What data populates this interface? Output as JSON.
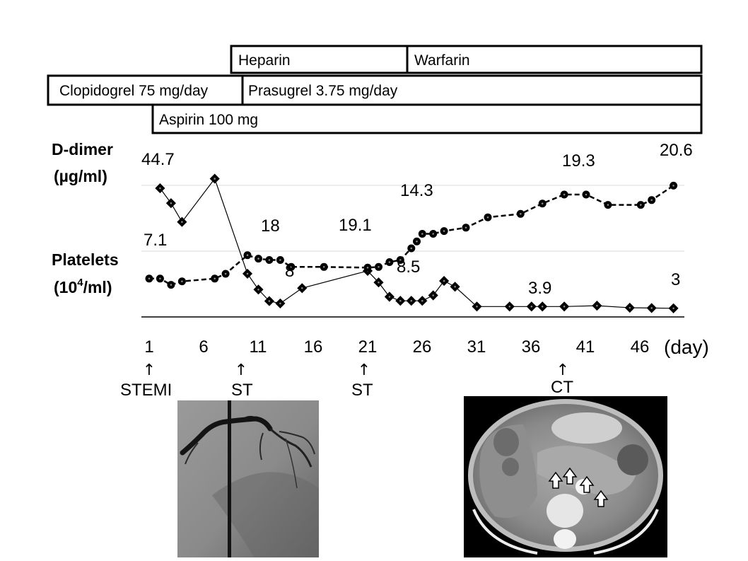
{
  "chart_data": {
    "type": "line",
    "medications": [
      {
        "name": "Heparin",
        "start": 9,
        "end": 25
      },
      {
        "name": "Warfarin",
        "start": 25,
        "end": 48
      },
      {
        "name": "Clopidogrel 75 mg/day",
        "start": 1,
        "end": 10
      },
      {
        "name": "Prasugrel 3.75 mg/day",
        "start": 10,
        "end": 48
      },
      {
        "name": "Aspirin 100 mg",
        "start": 1,
        "end": 48
      }
    ],
    "ylabel_ddimer": [
      "D-dimer",
      "(µg/ml)"
    ],
    "ylabel_platelets": {
      "prefix": "Platelets",
      "open": "(10",
      "sup": "4",
      "close": "/ml)"
    },
    "xlabel": "(day)",
    "xticks": [
      "1",
      "6",
      "11",
      "16",
      "21",
      "26",
      "31",
      "36",
      "41",
      "46"
    ],
    "x_range": [
      1,
      49
    ],
    "series": [
      {
        "name": "D-dimer",
        "style": "solid",
        "marker": "diamond",
        "x": [
          2,
          3,
          4,
          7,
          10,
          11,
          12,
          13,
          15,
          21,
          22,
          23,
          24,
          25,
          26,
          27,
          28,
          29,
          31,
          34,
          36,
          37,
          39,
          42,
          45,
          47,
          49
        ],
        "y": [
          44.7,
          39.5,
          33,
          48,
          15,
          9.5,
          5.5,
          4.7,
          10,
          16,
          12,
          7,
          5.6,
          5.6,
          5.6,
          7.5,
          12.5,
          10.5,
          3.6,
          3.6,
          3.6,
          3.6,
          3.6,
          3.9,
          3.2,
          3.1,
          3.0
        ]
      },
      {
        "name": "Platelets",
        "style": "dashed",
        "marker": "circle",
        "x": [
          1,
          2,
          3,
          4,
          7,
          8,
          10,
          11,
          12,
          13,
          14,
          17,
          21,
          22,
          23,
          24,
          25,
          25.5,
          26,
          27,
          28,
          30,
          32,
          35,
          37,
          39,
          41,
          43,
          46,
          47,
          49
        ],
        "y": [
          7.1,
          7.1,
          6.2,
          6.7,
          7.1,
          7.8,
          10.5,
          10,
          9.8,
          9.8,
          8.8,
          8.8,
          8.7,
          8.8,
          9.5,
          9.8,
          11.5,
          12.5,
          13.6,
          13.6,
          14,
          14.5,
          16,
          16.5,
          18,
          19.3,
          19.3,
          17.8,
          17.8,
          18.5,
          20.6
        ]
      }
    ],
    "value_labels": [
      "44.7",
      "7.1",
      "18",
      "8",
      "19.1",
      "14.3",
      "8.5",
      "3.9",
      "19.3",
      "3",
      "20.6"
    ],
    "events": [
      {
        "day": 1,
        "label": "STEMI"
      },
      {
        "day": 9,
        "label": "ST"
      },
      {
        "day": 21,
        "label": "ST"
      },
      {
        "day": 39,
        "label": "CT"
      }
    ]
  }
}
